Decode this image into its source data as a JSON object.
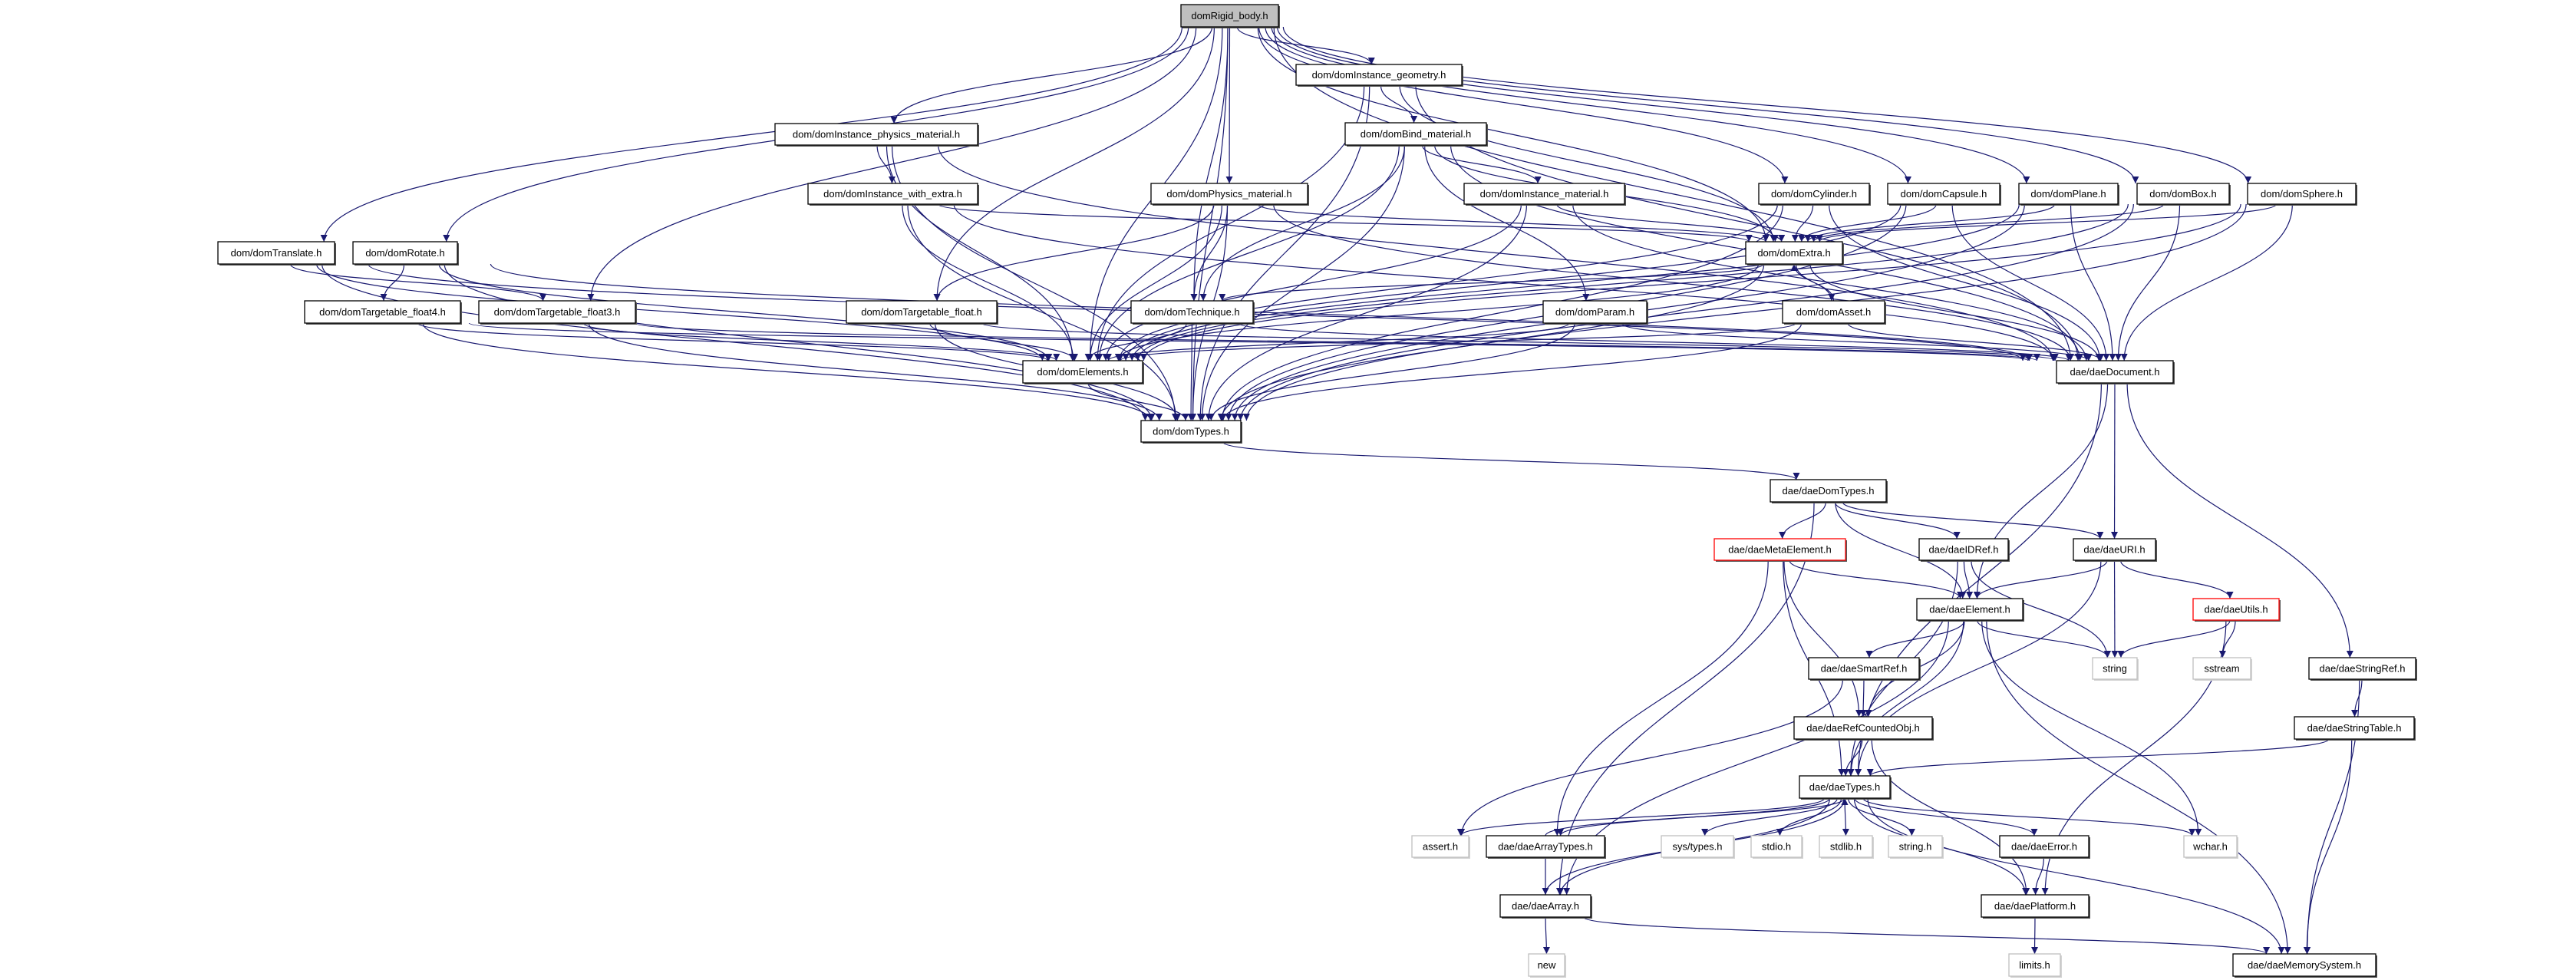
{
  "edge_color": "#191970",
  "root_fill": "#bfbfbf",
  "nodes": [
    {
      "id": "rigid",
      "label": "domRigid_body.h",
      "style": "root"
    },
    {
      "id": "igeom",
      "label": "dom/domInstance_geometry.h",
      "style": "normal"
    },
    {
      "id": "iphys",
      "label": "dom/domInstance_physics_material.h",
      "style": "normal"
    },
    {
      "id": "bind",
      "label": "dom/domBind_material.h",
      "style": "normal"
    },
    {
      "id": "iwe",
      "label": "dom/domInstance_with_extra.h",
      "style": "normal"
    },
    {
      "id": "pmat",
      "label": "dom/domPhysics_material.h",
      "style": "normal"
    },
    {
      "id": "imat",
      "label": "dom/domInstance_material.h",
      "style": "normal"
    },
    {
      "id": "cyl",
      "label": "dom/domCylinder.h",
      "style": "normal"
    },
    {
      "id": "cap",
      "label": "dom/domCapsule.h",
      "style": "normal"
    },
    {
      "id": "plane",
      "label": "dom/domPlane.h",
      "style": "normal"
    },
    {
      "id": "box",
      "label": "dom/domBox.h",
      "style": "normal"
    },
    {
      "id": "sphere",
      "label": "dom/domSphere.h",
      "style": "normal"
    },
    {
      "id": "trans",
      "label": "dom/domTranslate.h",
      "style": "normal"
    },
    {
      "id": "rot",
      "label": "dom/domRotate.h",
      "style": "normal"
    },
    {
      "id": "extra",
      "label": "dom/domExtra.h",
      "style": "normal"
    },
    {
      "id": "tf4",
      "label": "dom/domTargetable_float4.h",
      "style": "normal"
    },
    {
      "id": "tf3",
      "label": "dom/domTargetable_float3.h",
      "style": "normal"
    },
    {
      "id": "tf",
      "label": "dom/domTargetable_float.h",
      "style": "normal"
    },
    {
      "id": "tech",
      "label": "dom/domTechnique.h",
      "style": "normal"
    },
    {
      "id": "param",
      "label": "dom/domParam.h",
      "style": "normal"
    },
    {
      "id": "asset",
      "label": "dom/domAsset.h",
      "style": "normal"
    },
    {
      "id": "elems",
      "label": "dom/domElements.h",
      "style": "normal"
    },
    {
      "id": "doc",
      "label": "dae/daeDocument.h",
      "style": "normal"
    },
    {
      "id": "dtypes",
      "label": "dom/domTypes.h",
      "style": "normal"
    },
    {
      "id": "daedom",
      "label": "dae/daeDomTypes.h",
      "style": "normal"
    },
    {
      "id": "meta",
      "label": "dae/daeMetaElement.h",
      "style": "red"
    },
    {
      "id": "idref",
      "label": "dae/daeIDRef.h",
      "style": "normal"
    },
    {
      "id": "uri",
      "label": "dae/daeURI.h",
      "style": "normal"
    },
    {
      "id": "elem",
      "label": "dae/daeElement.h",
      "style": "normal"
    },
    {
      "id": "utils",
      "label": "dae/daeUtils.h",
      "style": "red"
    },
    {
      "id": "smart",
      "label": "dae/daeSmartRef.h",
      "style": "normal"
    },
    {
      "id": "string",
      "label": "string",
      "style": "system"
    },
    {
      "id": "sstream",
      "label": "sstream",
      "style": "system"
    },
    {
      "id": "sref",
      "label": "dae/daeStringRef.h",
      "style": "normal"
    },
    {
      "id": "refc",
      "label": "dae/daeRefCountedObj.h",
      "style": "normal"
    },
    {
      "id": "stable",
      "label": "dae/daeStringTable.h",
      "style": "normal"
    },
    {
      "id": "types",
      "label": "dae/daeTypes.h",
      "style": "normal"
    },
    {
      "id": "assert",
      "label": "assert.h",
      "style": "system"
    },
    {
      "id": "atypes",
      "label": "dae/daeArrayTypes.h",
      "style": "normal"
    },
    {
      "id": "systypes",
      "label": "sys/types.h",
      "style": "system"
    },
    {
      "id": "stdio",
      "label": "stdio.h",
      "style": "system"
    },
    {
      "id": "stdlib",
      "label": "stdlib.h",
      "style": "system"
    },
    {
      "id": "stringh",
      "label": "string.h",
      "style": "system"
    },
    {
      "id": "error",
      "label": "dae/daeError.h",
      "style": "normal"
    },
    {
      "id": "wchar",
      "label": "wchar.h",
      "style": "system"
    },
    {
      "id": "array",
      "label": "dae/daeArray.h",
      "style": "normal"
    },
    {
      "id": "platform",
      "label": "dae/daePlatform.h",
      "style": "normal"
    },
    {
      "id": "new",
      "label": "new",
      "style": "system"
    },
    {
      "id": "limits",
      "label": "limits.h",
      "style": "system"
    },
    {
      "id": "mem",
      "label": "dae/daeMemorySystem.h",
      "style": "normal"
    }
  ],
  "edges": [
    [
      "rigid",
      "igeom"
    ],
    [
      "rigid",
      "iphys"
    ],
    [
      "rigid",
      "pmat"
    ],
    [
      "rigid",
      "trans"
    ],
    [
      "rigid",
      "rot"
    ],
    [
      "rigid",
      "tf3"
    ],
    [
      "rigid",
      "tf"
    ],
    [
      "rigid",
      "tech"
    ],
    [
      "rigid",
      "elems"
    ],
    [
      "rigid",
      "dtypes"
    ],
    [
      "rigid",
      "extra"
    ],
    [
      "rigid",
      "cyl"
    ],
    [
      "rigid",
      "cap"
    ],
    [
      "rigid",
      "plane"
    ],
    [
      "rigid",
      "box"
    ],
    [
      "rigid",
      "sphere"
    ],
    [
      "rigid",
      "doc"
    ],
    [
      "igeom",
      "bind"
    ],
    [
      "igeom",
      "elems"
    ],
    [
      "igeom",
      "dtypes"
    ],
    [
      "igeom",
      "extra"
    ],
    [
      "igeom",
      "doc"
    ],
    [
      "iphys",
      "iwe"
    ],
    [
      "iphys",
      "elems"
    ],
    [
      "iphys",
      "dtypes"
    ],
    [
      "iphys",
      "doc"
    ],
    [
      "bind",
      "imat"
    ],
    [
      "bind",
      "param"
    ],
    [
      "bind",
      "tech"
    ],
    [
      "bind",
      "elems"
    ],
    [
      "bind",
      "dtypes"
    ],
    [
      "bind",
      "extra"
    ],
    [
      "bind",
      "doc"
    ],
    [
      "iwe",
      "elems"
    ],
    [
      "iwe",
      "dtypes"
    ],
    [
      "iwe",
      "extra"
    ],
    [
      "iwe",
      "doc"
    ],
    [
      "pmat",
      "tf"
    ],
    [
      "pmat",
      "tech"
    ],
    [
      "pmat",
      "elems"
    ],
    [
      "pmat",
      "dtypes"
    ],
    [
      "pmat",
      "extra"
    ],
    [
      "pmat",
      "doc"
    ],
    [
      "imat",
      "elems"
    ],
    [
      "imat",
      "dtypes"
    ],
    [
      "imat",
      "extra"
    ],
    [
      "imat",
      "doc"
    ],
    [
      "cyl",
      "extra"
    ],
    [
      "cyl",
      "elems"
    ],
    [
      "cyl",
      "dtypes"
    ],
    [
      "cyl",
      "doc"
    ],
    [
      "cap",
      "extra"
    ],
    [
      "cap",
      "elems"
    ],
    [
      "cap",
      "dtypes"
    ],
    [
      "cap",
      "doc"
    ],
    [
      "plane",
      "extra"
    ],
    [
      "plane",
      "elems"
    ],
    [
      "plane",
      "dtypes"
    ],
    [
      "plane",
      "doc"
    ],
    [
      "box",
      "extra"
    ],
    [
      "box",
      "elems"
    ],
    [
      "box",
      "dtypes"
    ],
    [
      "box",
      "doc"
    ],
    [
      "sphere",
      "extra"
    ],
    [
      "sphere",
      "elems"
    ],
    [
      "sphere",
      "dtypes"
    ],
    [
      "sphere",
      "doc"
    ],
    [
      "trans",
      "tf3"
    ],
    [
      "trans",
      "elems"
    ],
    [
      "trans",
      "dtypes"
    ],
    [
      "trans",
      "doc"
    ],
    [
      "rot",
      "tf4"
    ],
    [
      "rot",
      "elems"
    ],
    [
      "rot",
      "dtypes"
    ],
    [
      "rot",
      "doc"
    ],
    [
      "tf4",
      "elems"
    ],
    [
      "tf4",
      "dtypes"
    ],
    [
      "tf4",
      "doc"
    ],
    [
      "tf3",
      "elems"
    ],
    [
      "tf3",
      "dtypes"
    ],
    [
      "tf3",
      "doc"
    ],
    [
      "tf",
      "elems"
    ],
    [
      "tf",
      "dtypes"
    ],
    [
      "tf",
      "doc"
    ],
    [
      "extra",
      "tech"
    ],
    [
      "extra",
      "asset"
    ],
    [
      "extra",
      "elems"
    ],
    [
      "extra",
      "dtypes"
    ],
    [
      "extra",
      "doc"
    ],
    [
      "asset",
      "extra"
    ],
    [
      "asset",
      "elems"
    ],
    [
      "asset",
      "dtypes"
    ],
    [
      "asset",
      "doc"
    ],
    [
      "tech",
      "elems"
    ],
    [
      "tech",
      "dtypes"
    ],
    [
      "tech",
      "doc"
    ],
    [
      "param",
      "elems"
    ],
    [
      "param",
      "dtypes"
    ],
    [
      "param",
      "doc"
    ],
    [
      "elems",
      "dtypes"
    ],
    [
      "doc",
      "uri"
    ],
    [
      "doc",
      "elem"
    ],
    [
      "doc",
      "sref"
    ],
    [
      "doc",
      "types"
    ],
    [
      "dtypes",
      "daedom"
    ],
    [
      "daedom",
      "meta"
    ],
    [
      "daedom",
      "idref"
    ],
    [
      "daedom",
      "uri"
    ],
    [
      "daedom",
      "elem"
    ],
    [
      "daedom",
      "array"
    ],
    [
      "meta",
      "elem"
    ],
    [
      "meta",
      "refc"
    ],
    [
      "meta",
      "types"
    ],
    [
      "meta",
      "atypes"
    ],
    [
      "idref",
      "elem"
    ],
    [
      "idref",
      "string"
    ],
    [
      "idref",
      "types"
    ],
    [
      "uri",
      "elem"
    ],
    [
      "uri",
      "string"
    ],
    [
      "uri",
      "utils"
    ],
    [
      "uri",
      "types"
    ],
    [
      "utils",
      "string"
    ],
    [
      "utils",
      "sstream"
    ],
    [
      "utils",
      "platform"
    ],
    [
      "elem",
      "smart"
    ],
    [
      "elem",
      "refc"
    ],
    [
      "elem",
      "types"
    ],
    [
      "elem",
      "string"
    ],
    [
      "elem",
      "wchar"
    ],
    [
      "elem",
      "mem"
    ],
    [
      "elem",
      "array"
    ],
    [
      "smart",
      "refc"
    ],
    [
      "smart",
      "assert"
    ],
    [
      "refc",
      "types"
    ],
    [
      "refc",
      "platform"
    ],
    [
      "sref",
      "stable"
    ],
    [
      "sref",
      "mem"
    ],
    [
      "stable",
      "types"
    ],
    [
      "stable",
      "mem"
    ],
    [
      "types",
      "assert"
    ],
    [
      "types",
      "atypes"
    ],
    [
      "types",
      "systypes"
    ],
    [
      "types",
      "stdio"
    ],
    [
      "types",
      "stdlib"
    ],
    [
      "types",
      "stringh"
    ],
    [
      "types",
      "error"
    ],
    [
      "types",
      "wchar"
    ],
    [
      "types",
      "platform"
    ],
    [
      "types",
      "array"
    ],
    [
      "types",
      "mem"
    ],
    [
      "atypes",
      "types"
    ],
    [
      "atypes",
      "array"
    ],
    [
      "array",
      "new"
    ],
    [
      "array",
      "mem"
    ],
    [
      "array",
      "types"
    ],
    [
      "error",
      "platform"
    ],
    [
      "platform",
      "limits"
    ]
  ]
}
